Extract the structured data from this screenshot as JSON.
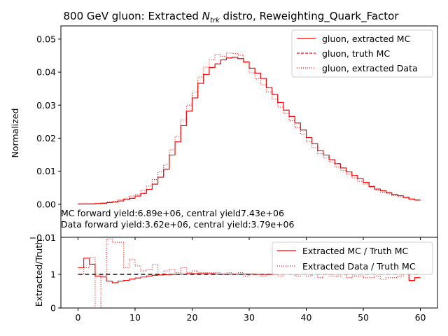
{
  "figure": {
    "title": "800 GeV gluon: Extracted N_trk distro, Reweighting_Quark_Factor",
    "title_prefix": "800 GeV gluon: Extracted ",
    "title_symbol": "N",
    "title_subscript": "trk",
    "title_suffix": " distro, Reweighting_Quark_Factor"
  },
  "annotations": {
    "mc_yield": "MC forward yield:6.89e+06, central yield7.43e+06",
    "data_yield": "Data forward yield:3.62e+06, central yield:3.79e+06"
  },
  "chart_data": [
    {
      "type": "line",
      "title": "800 GeV gluon: Extracted N_trk distro, Reweighting_Quark_Factor",
      "xlabel": "",
      "ylabel": "Normalized",
      "xlim": [
        -3,
        63
      ],
      "ylim": [
        -0.01,
        0.054
      ],
      "xticks": [
        0,
        10,
        20,
        30,
        40,
        50,
        60
      ],
      "xtick_labels": [
        "0",
        "10",
        "20",
        "30",
        "40",
        "50",
        "60"
      ],
      "yticks": [
        0.0,
        0.01,
        0.02,
        0.03,
        0.04,
        0.05
      ],
      "ytick_labels": [
        "0.00",
        "0.01",
        "0.02",
        "0.03",
        "0.04",
        "0.05"
      ],
      "grid": false,
      "legend_position": "top-right",
      "bin_edges_start": 0,
      "bin_width": 1,
      "series": [
        {
          "name": "gluon, extracted MC",
          "linestyle": "solid",
          "color": "#ff0000",
          "values": [
            0.0001,
            0.0001,
            0.0001,
            0.0002,
            0.0003,
            0.0005,
            0.0007,
            0.001,
            0.0014,
            0.0018,
            0.0025,
            0.0033,
            0.0045,
            0.0061,
            0.0082,
            0.0106,
            0.0149,
            0.0189,
            0.0238,
            0.0282,
            0.0322,
            0.0366,
            0.0393,
            0.0414,
            0.0425,
            0.0437,
            0.0443,
            0.0445,
            0.0441,
            0.0431,
            0.0412,
            0.0397,
            0.0381,
            0.0353,
            0.0332,
            0.0308,
            0.0285,
            0.0266,
            0.0246,
            0.0225,
            0.0202,
            0.0183,
            0.0162,
            0.0149,
            0.0135,
            0.0123,
            0.011,
            0.0098,
            0.0087,
            0.0077,
            0.0066,
            0.0054,
            0.0046,
            0.0041,
            0.0035,
            0.003,
            0.0026,
            0.0021,
            0.0016,
            0.0013
          ]
        },
        {
          "name": "gluon, truth MC",
          "linestyle": "dashed",
          "color": "#ff0000",
          "values": [
            0.0001,
            0.0001,
            0.0001,
            0.0002,
            0.0003,
            0.0005,
            0.0007,
            0.001,
            0.0014,
            0.0018,
            0.0025,
            0.0033,
            0.0045,
            0.0061,
            0.0082,
            0.0106,
            0.0149,
            0.0189,
            0.0238,
            0.0282,
            0.0322,
            0.0366,
            0.0393,
            0.0414,
            0.0425,
            0.0437,
            0.0443,
            0.0445,
            0.0441,
            0.0431,
            0.0412,
            0.0397,
            0.0381,
            0.0353,
            0.0332,
            0.0308,
            0.0285,
            0.0266,
            0.0246,
            0.0225,
            0.0202,
            0.0183,
            0.0162,
            0.0149,
            0.0135,
            0.0123,
            0.011,
            0.0098,
            0.0087,
            0.0077,
            0.0066,
            0.0054,
            0.0046,
            0.0041,
            0.0035,
            0.003,
            0.0026,
            0.0021,
            0.0016,
            0.0013
          ]
        },
        {
          "name": "gluon, extracted Data",
          "linestyle": "dotted",
          "color": "#ff0000",
          "values": [
            0.0,
            0.0001,
            0.0002,
            0.0003,
            0.0004,
            0.0007,
            0.0009,
            0.0014,
            0.0018,
            0.0025,
            0.003,
            0.0042,
            0.0055,
            0.0075,
            0.0098,
            0.0119,
            0.0165,
            0.0205,
            0.0255,
            0.03,
            0.034,
            0.0385,
            0.0415,
            0.0437,
            0.0454,
            0.0448,
            0.0458,
            0.0456,
            0.0452,
            0.0428,
            0.0398,
            0.038,
            0.0362,
            0.034,
            0.0318,
            0.0294,
            0.0275,
            0.0253,
            0.0232,
            0.0212,
            0.019,
            0.0171,
            0.0153,
            0.014,
            0.0127,
            0.0113,
            0.0102,
            0.0091,
            0.008,
            0.0069,
            0.0061,
            0.0051,
            0.0043,
            0.0037,
            0.0032,
            0.0026,
            0.0022,
            0.0019,
            0.0015,
            0.0012
          ]
        }
      ]
    },
    {
      "type": "line",
      "title": "",
      "xlabel": "",
      "ylabel": "Extracted/Truth",
      "xlim": [
        -3,
        63
      ],
      "ylim": [
        0,
        2.1
      ],
      "xticks": [
        0,
        10,
        20,
        30,
        40,
        50,
        60
      ],
      "xtick_labels": [
        "0",
        "10",
        "20",
        "30",
        "40",
        "50",
        "60"
      ],
      "yticks": [
        0,
        1
      ],
      "ytick_labels": [
        "0",
        "1"
      ],
      "overlap_tick_label": "−0.01",
      "reference_line": 1,
      "grid": false,
      "legend_position": "top-right",
      "bin_edges_start": 0,
      "bin_width": 1,
      "series": [
        {
          "name": "Extracted MC / Truth MC",
          "linestyle": "solid",
          "color": "#ff0000",
          "values": [
            1.2,
            1.48,
            1.3,
            0.95,
            0.92,
            0.8,
            0.75,
            0.8,
            0.82,
            0.86,
            0.89,
            0.92,
            0.95,
            0.97,
            0.98,
            0.99,
            1.0,
            1.01,
            1.01,
            1.02,
            1.02,
            1.02,
            1.02,
            1.02,
            1.01,
            1.01,
            1.01,
            1.01,
            1.01,
            1.01,
            1.01,
            1.0,
            1.0,
            1.0,
            1.0,
            1.0,
            1.0,
            1.0,
            1.0,
            1.0,
            1.0,
            1.0,
            1.0,
            1.0,
            1.0,
            1.0,
            1.0,
            1.0,
            1.0,
            1.0,
            1.0,
            1.0,
            1.0,
            1.0,
            1.0,
            1.0,
            1.0,
            1.0,
            0.82,
            0.9
          ]
        },
        {
          "name": "Extracted Data / Truth MC",
          "linestyle": "dotted",
          "color": "#ff0000",
          "values": [
            1.0,
            1.2,
            1.5,
            0.0,
            0.95,
            2.05,
            1.95,
            1.95,
            1.2,
            1.45,
            1.25,
            1.1,
            1.15,
            1.3,
            1.0,
            1.1,
            1.15,
            1.05,
            1.2,
            1.05,
            1.1,
            1.05,
            1.05,
            1.05,
            1.05,
            1.0,
            1.05,
            1.0,
            1.05,
            0.95,
            1.0,
            1.0,
            0.95,
            1.0,
            1.0,
            0.95,
            1.0,
            1.0,
            0.95,
            1.05,
            0.95,
            1.0,
            0.9,
            1.0,
            0.95,
            0.95,
            1.0,
            0.9,
            0.95,
            0.95,
            0.9,
            0.9,
            0.95,
            0.85,
            0.9,
            0.9,
            0.95,
            1.0,
            0.8,
            0.9
          ]
        }
      ]
    }
  ]
}
